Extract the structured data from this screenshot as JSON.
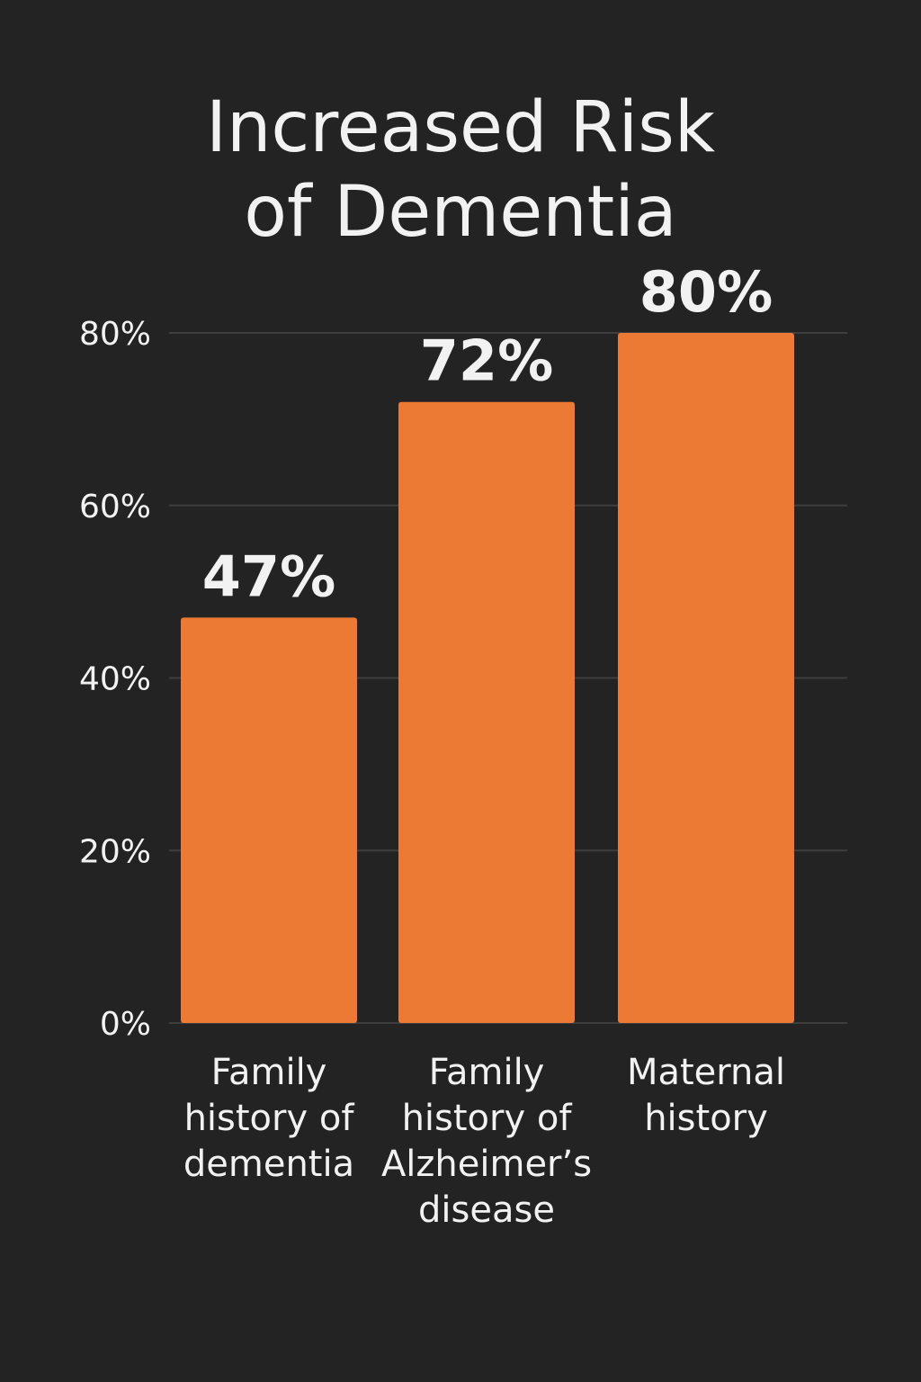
{
  "chart_data": {
    "type": "bar",
    "title_lines": [
      "Increased Risk",
      "of Dementia"
    ],
    "categories": [
      [
        "Family",
        "history of",
        "dementia"
      ],
      [
        "Family",
        "history of",
        "Alzheimer’s",
        "disease"
      ],
      [
        "Maternal",
        "history"
      ]
    ],
    "values": [
      47,
      72,
      80
    ],
    "value_labels": [
      "47%",
      "72%",
      "80%"
    ],
    "y_ticks": [
      0,
      20,
      40,
      60,
      80
    ],
    "y_tick_labels": [
      "0%",
      "20%",
      "40%",
      "60%",
      "80%"
    ],
    "ylim": [
      0,
      80
    ],
    "grid": true,
    "colors": {
      "background": "#232323",
      "bar": "#ec7a35",
      "grid": "#3e3e3e",
      "text": "#f2f2f2"
    }
  }
}
